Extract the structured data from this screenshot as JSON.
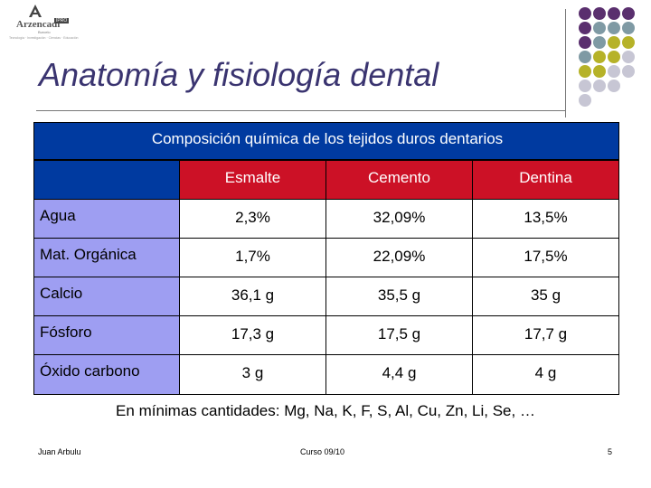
{
  "logo": {
    "brand": "Arzencadi",
    "badge": "IPRO",
    "sub": "Burcelo",
    "tagline": "Tecnología · Investigación · Ciencias · Educación"
  },
  "title": "Anatomía y fisiología dental",
  "table": {
    "caption": "Composición química de los tejidos duros dentarios",
    "columns": [
      "Esmalte",
      "Cemento",
      "Dentina"
    ],
    "rows": [
      {
        "label": "Agua",
        "values": [
          "2,3%",
          "32,09%",
          "13,5%"
        ]
      },
      {
        "label": "Mat. Orgánica",
        "values": [
          "1,7%",
          "22,09%",
          "17,5%"
        ]
      },
      {
        "label": "Calcio",
        "values": [
          "36,1 g",
          "35,5 g",
          "35 g"
        ]
      },
      {
        "label": "Fósforo",
        "values": [
          "17,3 g",
          "17,5 g",
          "17,7 g"
        ]
      },
      {
        "label": "Óxido carbono",
        "values": [
          "3 g",
          "4,4 g",
          "4 g"
        ]
      }
    ]
  },
  "note": "En mínimas cantidades: Mg, Na, K, F, S, Al, Cu, Zn, Li, Se, …",
  "footer": {
    "author": "Juan Arbulu",
    "course": "Curso 09/10",
    "page": "5"
  },
  "colors": {
    "title": "#3a3470",
    "band": "#003aa0",
    "header": "#cc1126",
    "row_label": "#9e9ef2",
    "dot_purple": "#5a2f6e",
    "dot_teal": "#7f9aa4",
    "dot_olive": "#b6b228",
    "dot_grey": "#c7c6d4"
  },
  "decor": {
    "dots": [
      [
        "purple",
        "purple",
        "purple",
        "purple"
      ],
      [
        "purple",
        "teal",
        "teal",
        "teal"
      ],
      [
        "purple",
        "teal",
        "olive",
        "olive"
      ],
      [
        "teal",
        "olive",
        "olive",
        "grey"
      ],
      [
        "olive",
        "olive",
        "grey",
        "grey"
      ],
      [
        "grey",
        "grey",
        "grey",
        ""
      ],
      [
        "grey",
        "",
        "",
        ""
      ]
    ]
  }
}
